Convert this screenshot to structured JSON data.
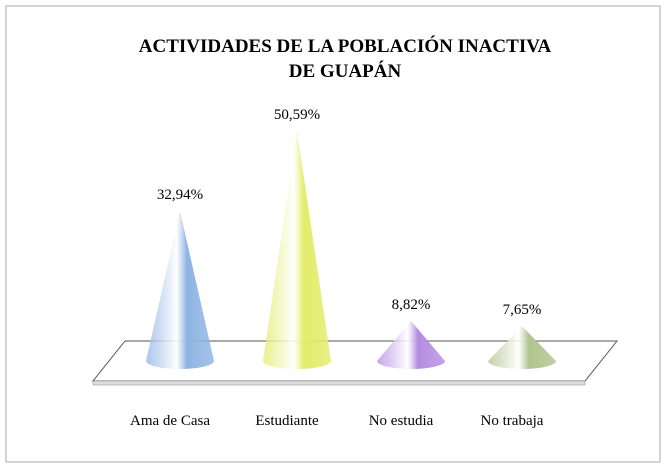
{
  "chart_data": {
    "type": "cone",
    "title": "ACTIVIDADES DE LA POBLACIÓN INACTIVA DE GUAPÁN",
    "categories": [
      "Ama de Casa",
      "Estudiante",
      "No estudia",
      "No trabaja"
    ],
    "values": [
      32.94,
      50.59,
      8.82,
      7.65
    ],
    "value_labels": [
      "32,94%",
      "50,59%",
      "8,82%",
      "7,65%"
    ],
    "colors": [
      "#8fb4e3",
      "#e3ec6a",
      "#b48de2",
      "#afc48e"
    ]
  }
}
